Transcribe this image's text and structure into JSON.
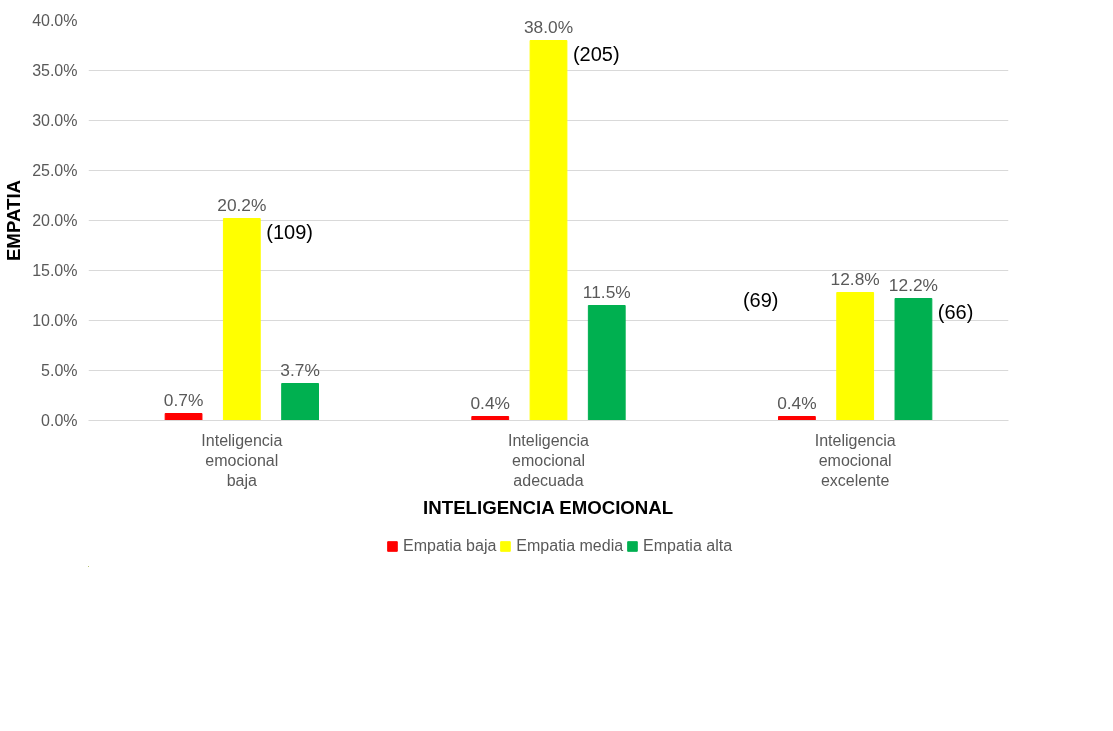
{
  "chart_data": {
    "type": "bar",
    "xlabel": "INTELIGENCIA EMOCIONAL",
    "ylabel": "EMPATIA",
    "categories": [
      "Inteligencia emocional baja",
      "Inteligencia emocional adecuada",
      "Inteligencia emocional excelente"
    ],
    "series": [
      {
        "name": "Empatia baja",
        "color": "#ff0000",
        "values": [
          0.7,
          0.4,
          0.4
        ],
        "value_labels": [
          "0.7%",
          "0.4%",
          "0.4%"
        ]
      },
      {
        "name": "Empatia media",
        "color": "#ffff00",
        "values": [
          20.2,
          38.0,
          12.8
        ],
        "value_labels": [
          "20.2%",
          "38.0%",
          "12.8%"
        ]
      },
      {
        "name": "Empatia alta",
        "color": "#00b050",
        "values": [
          3.7,
          11.5,
          12.2
        ],
        "value_labels": [
          "3.7%",
          "11.5%",
          "12.2%"
        ]
      }
    ],
    "ylim": [
      0,
      40
    ],
    "yticks": [
      {
        "value": 0,
        "label": "0.0%"
      },
      {
        "value": 5,
        "label": "5.0%"
      },
      {
        "value": 10,
        "label": "10.0%"
      },
      {
        "value": 15,
        "label": "15.0%"
      },
      {
        "value": 20,
        "label": "20.0%"
      },
      {
        "value": 25,
        "label": "25.0%"
      },
      {
        "value": 30,
        "label": "30.0%"
      },
      {
        "value": 35,
        "label": "35.0%"
      },
      {
        "value": 40,
        "label": "40.0%"
      }
    ],
    "annotations": [
      "(109)",
      "(205)",
      "(69)",
      "(66)"
    ],
    "grid": "y",
    "legend": "bottom"
  }
}
